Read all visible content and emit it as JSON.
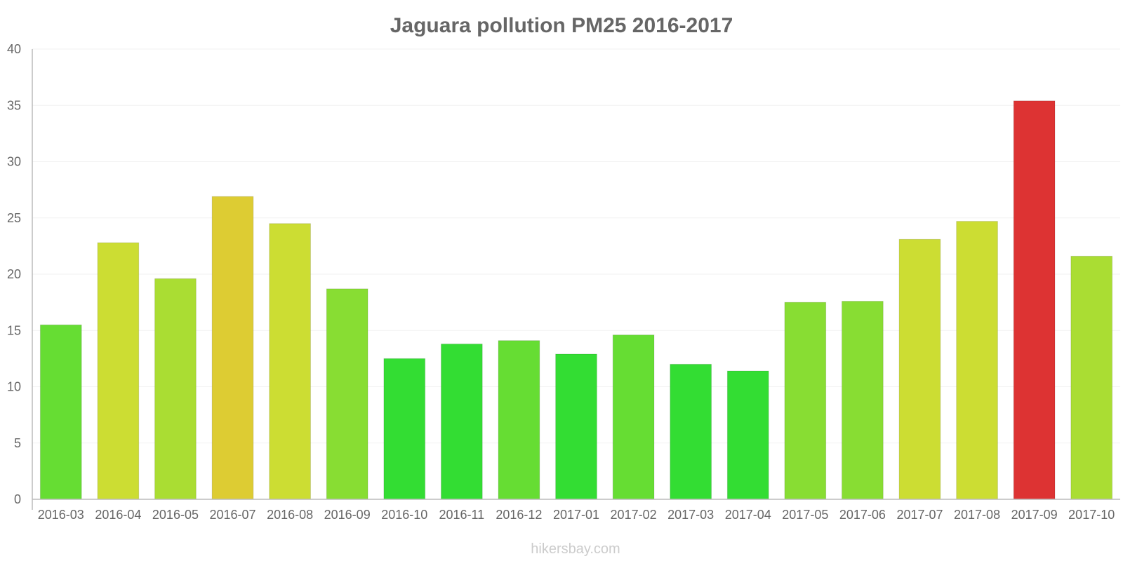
{
  "chart_data": {
    "type": "bar",
    "title": "Jaguara pollution PM25 2016-2017",
    "xlabel": "",
    "ylabel": "",
    "ylim": [
      0,
      40
    ],
    "yticks": [
      0,
      5,
      10,
      15,
      20,
      25,
      30,
      35,
      40
    ],
    "grid": true,
    "categories": [
      "2016-03",
      "2016-04",
      "2016-05",
      "2016-07",
      "2016-08",
      "2016-09",
      "2016-10",
      "2016-11",
      "2016-12",
      "2017-01",
      "2017-02",
      "2017-03",
      "2017-04",
      "2017-05",
      "2017-06",
      "2017-07",
      "2017-08",
      "2017-09",
      "2017-10"
    ],
    "values": [
      15.5,
      22.8,
      19.6,
      26.9,
      24.5,
      18.7,
      12.5,
      13.8,
      14.1,
      12.9,
      14.6,
      12.0,
      11.4,
      17.5,
      17.6,
      23.1,
      24.7,
      35.4,
      21.6
    ],
    "colors": [
      "#66dd33",
      "#ccdd33",
      "#aadd33",
      "#ddcc33",
      "#ccdd33",
      "#88dd33",
      "#33dd33",
      "#33dd33",
      "#66dd33",
      "#33dd33",
      "#66dd33",
      "#33dd33",
      "#33dd33",
      "#88dd33",
      "#88dd33",
      "#ccdd33",
      "#ccdd33",
      "#dd3333",
      "#aadd33"
    ]
  },
  "watermark": "hikersbay.com"
}
